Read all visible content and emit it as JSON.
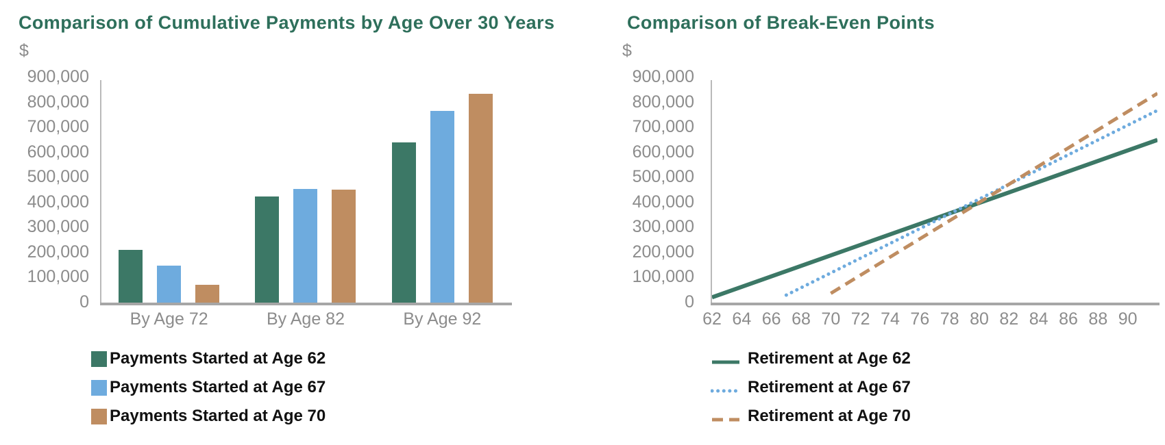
{
  "page": {
    "background": "#FFFFFF"
  },
  "styles": {
    "title_color": "#2E6F5B",
    "axis_text_color": "#8C8C8C",
    "axis_line_color": "#A6A6A6",
    "legend_text_color": "#111111",
    "series_green": "#3C7866",
    "series_blue": "#6EABDE",
    "series_tan": "#BF8D61"
  },
  "chart_data": [
    {
      "type": "bar",
      "title": "Comparison of Cumulative Payments by Age Over 30 Years",
      "y_axis_unit": "$",
      "ylim": [
        0,
        900000
      ],
      "ytick_step": 100000,
      "grid": false,
      "legend_position": "bottom-left",
      "categories": [
        "By Age 72",
        "By Age 82",
        "By Age 92"
      ],
      "series": [
        {
          "name": "Payments Started at Age 62",
          "color": "#3C7866",
          "values": [
            210000,
            425000,
            640000
          ]
        },
        {
          "name": "Payments Started at Age 67",
          "color": "#6EABDE",
          "values": [
            148000,
            455000,
            765000
          ]
        },
        {
          "name": "Payments Started at Age 70",
          "color": "#BF8D61",
          "values": [
            72000,
            452000,
            835000
          ]
        }
      ]
    },
    {
      "type": "line",
      "title": "Comparison of Break-Even Points",
      "y_axis_unit": "$",
      "ylim": [
        0,
        900000
      ],
      "ytick_step": 100000,
      "xlim": [
        62,
        92
      ],
      "xticks": [
        62,
        64,
        66,
        68,
        70,
        72,
        74,
        76,
        78,
        80,
        82,
        84,
        86,
        88,
        90
      ],
      "grid": false,
      "legend_position": "bottom-left",
      "series": [
        {
          "name": "Retirement at Age 62",
          "color": "#3C7866",
          "line_style": "solid",
          "points": [
            [
              62,
              21000
            ],
            [
              92,
              650000
            ]
          ]
        },
        {
          "name": "Retirement at Age 67",
          "color": "#6EABDE",
          "line_style": "dotted",
          "points": [
            [
              67,
              30000
            ],
            [
              92,
              768000
            ]
          ]
        },
        {
          "name": "Retirement at Age 70",
          "color": "#BF8D61",
          "line_style": "dashed",
          "points": [
            [
              70,
              37000
            ],
            [
              92,
              836000
            ]
          ]
        }
      ]
    }
  ]
}
